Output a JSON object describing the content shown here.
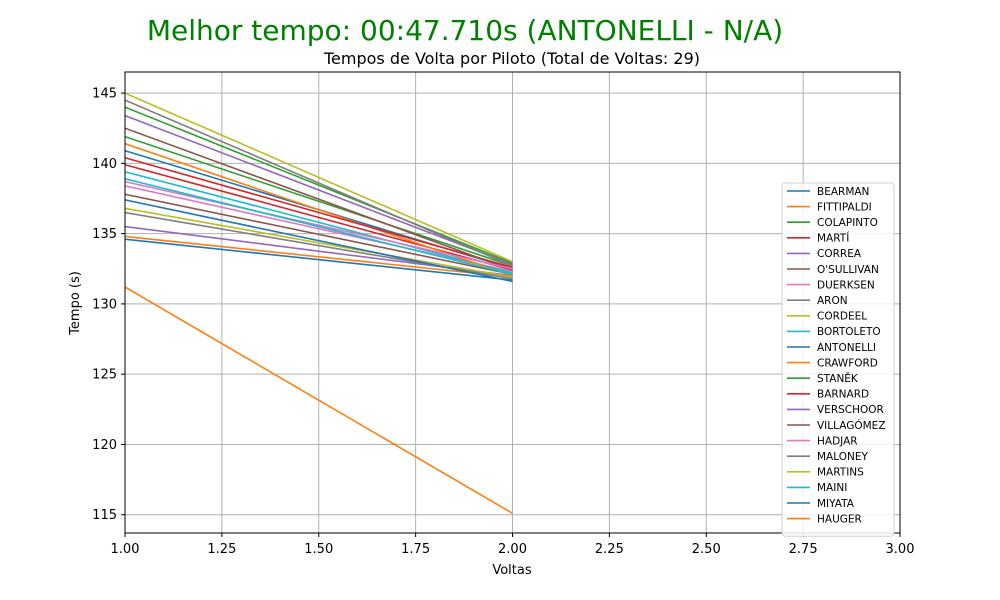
{
  "chart_data": {
    "type": "line",
    "suptitle": "Melhor tempo: 00:47.710s (ANTONELLI - N/A)",
    "title": "Tempos de Volta por Piloto (Total de Voltas: 29)",
    "xlabel": "Voltas",
    "ylabel": "Tempo (s)",
    "xlim": [
      1.0,
      3.0
    ],
    "ylim": [
      113.7,
      146.5
    ],
    "xticks": [
      1.0,
      1.25,
      1.5,
      1.75,
      2.0,
      2.25,
      2.5,
      2.75,
      3.0
    ],
    "xtick_labels": [
      "1.00",
      "1.25",
      "1.50",
      "1.75",
      "2.00",
      "2.25",
      "2.50",
      "2.75",
      "3.00"
    ],
    "yticks": [
      115,
      120,
      125,
      130,
      135,
      140,
      145
    ],
    "ytick_labels": [
      "115",
      "120",
      "125",
      "130",
      "135",
      "140",
      "145"
    ],
    "grid": true,
    "legend_position": "right",
    "x": [
      1,
      2
    ],
    "series": [
      {
        "name": "BEARMAN",
        "color": "#1f77b4",
        "values": [
          134.6,
          131.7
        ]
      },
      {
        "name": "FITTIPALDI",
        "color": "#ff7f0e",
        "values": [
          134.8,
          131.9
        ]
      },
      {
        "name": "COLAPINTO",
        "color": "#2ca02c",
        "values": [
          141.9,
          132.7
        ]
      },
      {
        "name": "MARTÍ",
        "color": "#d62728",
        "values": [
          139.9,
          132.4
        ]
      },
      {
        "name": "CORREA",
        "color": "#9467bd",
        "values": [
          135.5,
          132.0
        ]
      },
      {
        "name": "O'SULLIVAN",
        "color": "#8c564b",
        "values": [
          137.8,
          132.1
        ]
      },
      {
        "name": "DUERKSEN",
        "color": "#e377c2",
        "values": [
          138.4,
          132.3
        ]
      },
      {
        "name": "ARON",
        "color": "#7f7f7f",
        "values": [
          136.5,
          131.8
        ]
      },
      {
        "name": "CORDEEL",
        "color": "#bcbd22",
        "values": [
          136.8,
          131.9
        ]
      },
      {
        "name": "BORTOLETO",
        "color": "#17becf",
        "values": [
          139.4,
          132.2
        ]
      },
      {
        "name": "ANTONELLI",
        "color": "#1f77b4",
        "values": [
          140.9,
          132.5
        ]
      },
      {
        "name": "CRAWFORD",
        "color": "#ff7f0e",
        "values": [
          141.4,
          132.0
        ]
      },
      {
        "name": "STANĚK",
        "color": "#2ca02c",
        "values": [
          144.0,
          132.9
        ]
      },
      {
        "name": "BARNARD",
        "color": "#d62728",
        "values": [
          140.4,
          132.6
        ]
      },
      {
        "name": "VERSCHOOR",
        "color": "#9467bd",
        "values": [
          143.4,
          132.8
        ]
      },
      {
        "name": "VILLAGÓMEZ",
        "color": "#8c564b",
        "values": [
          142.5,
          132.4
        ]
      },
      {
        "name": "HADJAR",
        "color": "#e377c2",
        "values": [
          138.7,
          132.5
        ]
      },
      {
        "name": "MALONEY",
        "color": "#7f7f7f",
        "values": [
          144.5,
          132.7
        ]
      },
      {
        "name": "MARTINS",
        "color": "#bcbd22",
        "values": [
          145.0,
          133.0
        ]
      },
      {
        "name": "MAINI",
        "color": "#17becf",
        "values": [
          138.9,
          132.1
        ]
      },
      {
        "name": "MIYATA",
        "color": "#1f77b4",
        "values": [
          137.4,
          131.6
        ]
      },
      {
        "name": "HAUGER",
        "color": "#ff7f0e",
        "values": [
          131.2,
          115.1
        ]
      }
    ]
  }
}
